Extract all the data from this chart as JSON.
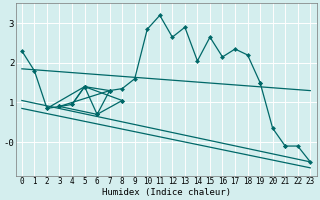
{
  "xlabel": "Humidex (Indice chaleur)",
  "bg_color": "#d4eeee",
  "grid_color": "#ffffff",
  "line_color": "#006868",
  "series": {
    "upper_line": {
      "x": [
        0,
        1,
        2,
        3,
        4,
        5,
        6,
        7,
        8,
        9,
        10,
        11,
        12,
        13,
        14,
        15,
        16,
        17,
        18,
        19,
        20,
        21,
        22,
        23
      ],
      "y": [
        2.3,
        1.8,
        0.85,
        0.9,
        0.95,
        1.4,
        0.7,
        1.3,
        1.35,
        1.6,
        2.85,
        3.2,
        2.65,
        2.9,
        2.05,
        2.65,
        2.15,
        2.35,
        2.2,
        1.5,
        null,
        null,
        null,
        null
      ]
    },
    "lower_line": {
      "x": [
        2,
        3,
        4,
        5,
        6,
        7,
        8
      ],
      "y": [
        0.85,
        0.9,
        0.95,
        1.4,
        0.7,
        1.3,
        1.05
      ]
    },
    "drop_line": {
      "x": [
        19,
        20,
        21
      ],
      "y": [
        1.5,
        0.35,
        -0.1
      ]
    },
    "final_line": {
      "x": [
        21,
        22,
        23
      ],
      "y": [
        -0.1,
        -0.1,
        -0.5
      ]
    },
    "reg_upper": {
      "x": [
        0,
        23
      ],
      "y": [
        1.85,
        1.3
      ]
    },
    "reg_mid": {
      "x": [
        0,
        23
      ],
      "y": [
        1.05,
        -0.5
      ]
    },
    "reg_lower": {
      "x": [
        0,
        23
      ],
      "y": [
        0.85,
        -0.65
      ]
    }
  },
  "cross_lines": [
    {
      "x": [
        2,
        8
      ],
      "y": [
        0.85,
        1.05
      ]
    },
    {
      "x": [
        3,
        7
      ],
      "y": [
        0.9,
        1.3
      ]
    },
    {
      "x": [
        4,
        6
      ],
      "y": [
        0.95,
        0.7
      ]
    },
    {
      "x": [
        5,
        5
      ],
      "y": [
        1.4,
        1.4
      ]
    }
  ],
  "xlim": [
    -0.5,
    23.5
  ],
  "ylim": [
    -0.85,
    3.5
  ],
  "yticks": [
    0,
    1,
    2,
    3
  ],
  "ytick_labels": [
    "-0",
    "1",
    "2",
    "3"
  ],
  "xticks": [
    0,
    1,
    2,
    3,
    4,
    5,
    6,
    7,
    8,
    9,
    10,
    11,
    12,
    13,
    14,
    15,
    16,
    17,
    18,
    19,
    20,
    21,
    22,
    23
  ],
  "tick_fontsize": 5.5,
  "xlabel_fontsize": 6.5
}
